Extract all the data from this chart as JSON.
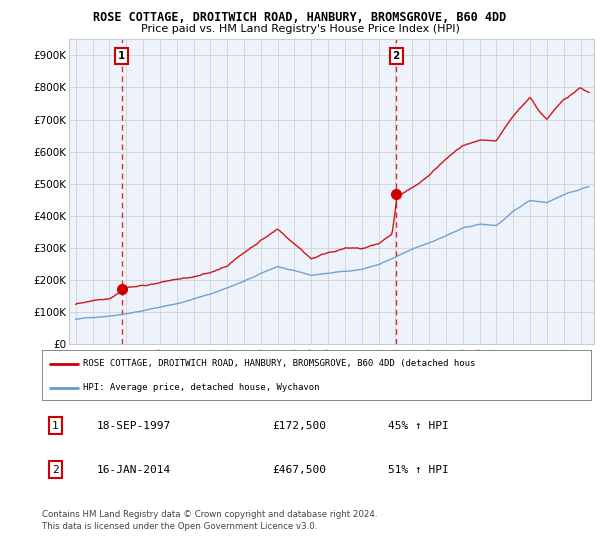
{
  "title1": "ROSE COTTAGE, DROITWICH ROAD, HANBURY, BROMSGROVE, B60 4DD",
  "title2": "Price paid vs. HM Land Registry's House Price Index (HPI)",
  "ylabel_ticks": [
    "£0",
    "£100K",
    "£200K",
    "£300K",
    "£400K",
    "£500K",
    "£600K",
    "£700K",
    "£800K",
    "£900K"
  ],
  "ytick_vals": [
    0,
    100000,
    200000,
    300000,
    400000,
    500000,
    600000,
    700000,
    800000,
    900000
  ],
  "ylim": [
    0,
    950000
  ],
  "xlim_start": 1994.6,
  "xlim_end": 2025.8,
  "xtick_years": [
    1995,
    1996,
    1997,
    1998,
    1999,
    2000,
    2001,
    2002,
    2003,
    2004,
    2005,
    2006,
    2007,
    2008,
    2009,
    2010,
    2011,
    2012,
    2013,
    2014,
    2015,
    2016,
    2017,
    2018,
    2019,
    2020,
    2021,
    2022,
    2023,
    2024,
    2025
  ],
  "marker1_x": 1997.72,
  "marker1_y": 172500,
  "marker1_label": "1",
  "marker2_x": 2014.04,
  "marker2_y": 467500,
  "marker2_label": "2",
  "vline1_x": 1997.72,
  "vline2_x": 2014.04,
  "legend_line1": "ROSE COTTAGE, DROITWICH ROAD, HANBURY, BROMSGROVE, B60 4DD (detached hous",
  "legend_line2": "HPI: Average price, detached house, Wychavon",
  "table_row1": [
    "1",
    "18-SEP-1997",
    "£172,500",
    "45% ↑ HPI"
  ],
  "table_row2": [
    "2",
    "16-JAN-2014",
    "£467,500",
    "51% ↑ HPI"
  ],
  "footnote1": "Contains HM Land Registry data © Crown copyright and database right 2024.",
  "footnote2": "This data is licensed under the Open Government Licence v3.0.",
  "red_color": "#cc0000",
  "blue_color": "#6699cc",
  "bg_color": "#ffffff",
  "grid_color": "#cccccc",
  "plot_bg": "#eef2fa"
}
